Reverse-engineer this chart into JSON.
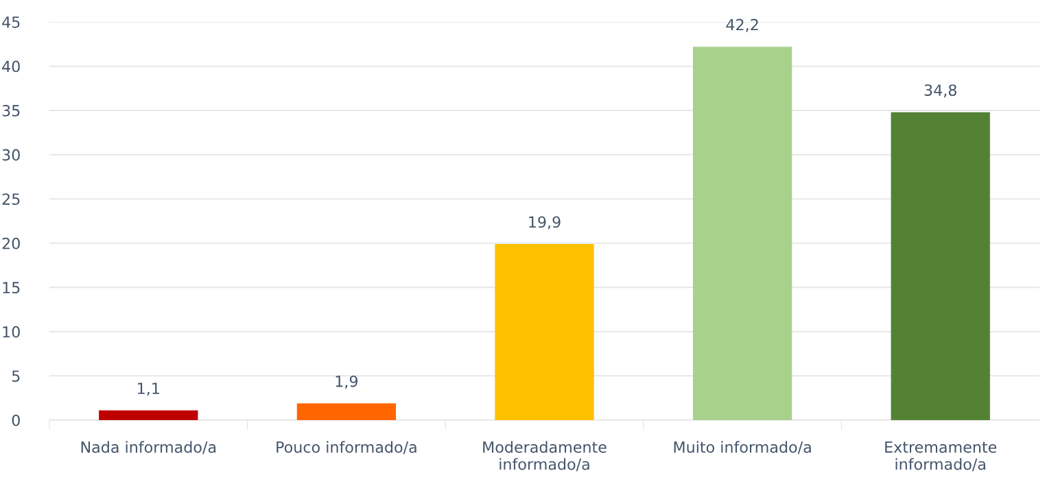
{
  "chart_data": {
    "type": "bar",
    "categories": [
      "Nada informado/a",
      "Pouco informado/a",
      "Moderadamente informado/a",
      "Muito informado/a",
      "Extremamente informado/a"
    ],
    "values": [
      1.1,
      1.9,
      19.9,
      42.2,
      34.8
    ],
    "colors": [
      "#c00000",
      "#ff6600",
      "#ffc000",
      "#a9d18e",
      "#548235"
    ],
    "value_labels": [
      "1,1",
      "1,9",
      "19,9",
      "42,2",
      "34,8"
    ],
    "ylim": [
      0,
      45
    ],
    "yticks": [
      0,
      5,
      10,
      15,
      20,
      25,
      30,
      35,
      40,
      45
    ],
    "grid": "y",
    "legend": false
  }
}
